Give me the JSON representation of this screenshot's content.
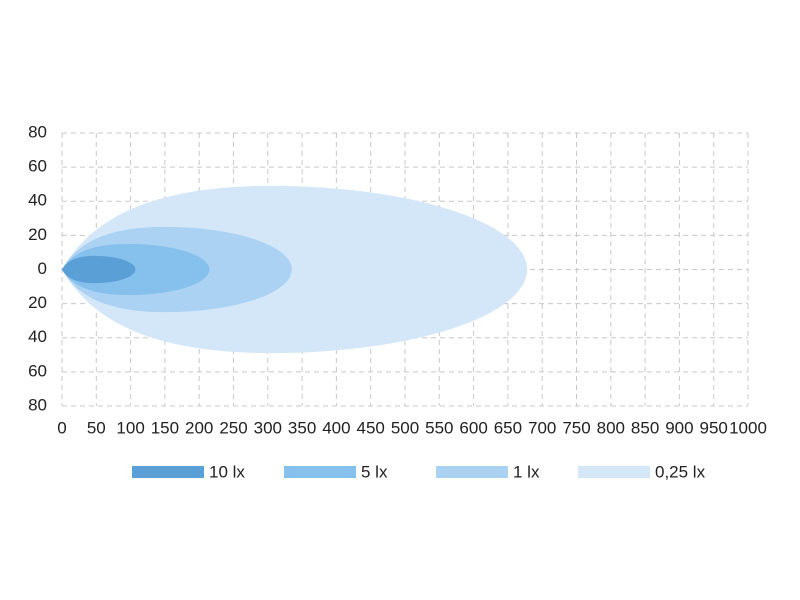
{
  "chart_data": {
    "type": "beam",
    "series": [
      {
        "name": "10 lx",
        "color": "#5b9fd7",
        "reach": 107,
        "half_width": 8
      },
      {
        "name": "5 lx",
        "color": "#86c0ec",
        "reach": 215,
        "half_width": 15
      },
      {
        "name": "1 lx",
        "color": "#abd2f3",
        "reach": 335,
        "half_width": 25
      },
      {
        "name": "0,25 lx",
        "color": "#d4e7f8",
        "reach": 678,
        "half_width": 49
      }
    ],
    "xlim": [
      0,
      1000
    ],
    "xticks": [
      0,
      50,
      100,
      150,
      200,
      250,
      300,
      350,
      400,
      450,
      500,
      550,
      600,
      650,
      700,
      750,
      800,
      850,
      900,
      950,
      1000
    ],
    "ylim": [
      -80,
      80
    ],
    "yticks": [
      80,
      60,
      40,
      20,
      0,
      {
        "value": -20,
        "label": "20"
      },
      {
        "value": -40,
        "label": "40"
      },
      {
        "value": -60,
        "label": "60"
      },
      {
        "value": -80,
        "label": "80"
      }
    ],
    "grid": true
  }
}
